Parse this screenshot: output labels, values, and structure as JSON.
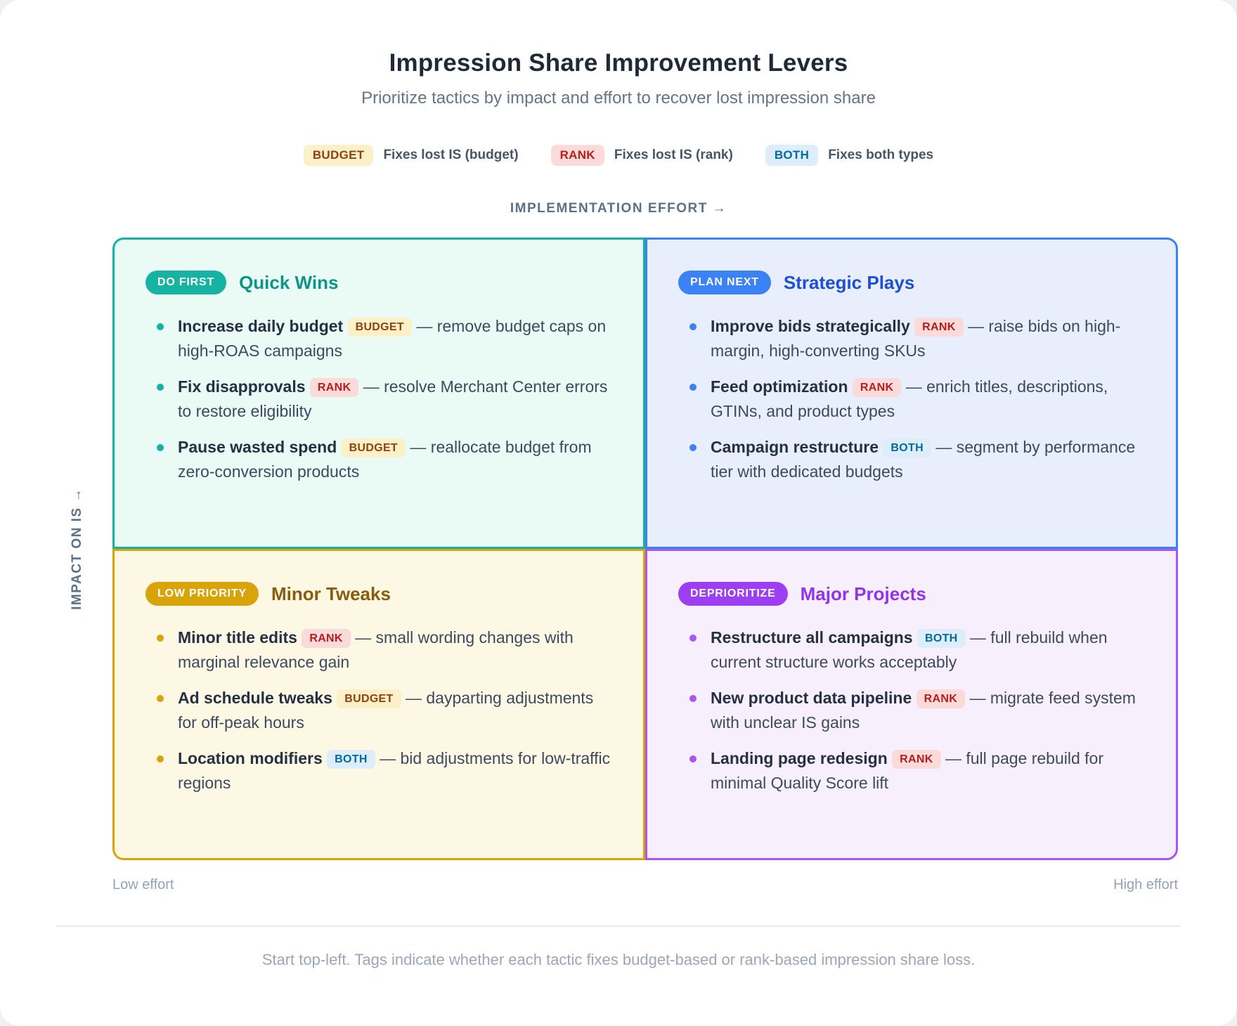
{
  "page": {
    "title": "Impression Share Improvement Levers",
    "subtitle": "Prioritize tactics by impact and effort to recover lost impression share",
    "footnote": "Start top-left. Tags indicate whether each tactic fixes budget-based or rank-based impression share loss."
  },
  "legend": [
    {
      "tag": "BUDGET",
      "label": "Fixes lost IS (budget)"
    },
    {
      "tag": "RANK",
      "label": "Fixes lost IS (rank)"
    },
    {
      "tag": "BOTH",
      "label": "Fixes both types"
    }
  ],
  "axes": {
    "x_label": "IMPLEMENTATION EFFORT →",
    "y_label": "IMPACT ON IS →",
    "x_min_label": "Low effort",
    "x_max_label": "High effort"
  },
  "quadrants": [
    {
      "id": "quick-wins",
      "badge": "DO FIRST",
      "title": "Quick Wins",
      "accent": "#14b3a1",
      "items": [
        {
          "lead": "Increase daily budget",
          "tag": "BUDGET",
          "rest": "— remove budget caps on high-ROAS campaigns"
        },
        {
          "lead": "Fix disapprovals",
          "tag": "RANK",
          "rest": "— resolve Merchant Center errors to restore eligibility"
        },
        {
          "lead": "Pause wasted spend",
          "tag": "BUDGET",
          "rest": "— reallocate budget from zero-conversion products"
        }
      ]
    },
    {
      "id": "strategic-plays",
      "badge": "PLAN NEXT",
      "title": "Strategic Plays",
      "accent": "#3b82f6",
      "items": [
        {
          "lead": "Improve bids strategically",
          "tag": "RANK",
          "rest": "— raise bids on high-margin, high-converting SKUs"
        },
        {
          "lead": "Feed optimization",
          "tag": "RANK",
          "rest": "— enrich titles, descriptions, GTINs, and product types"
        },
        {
          "lead": "Campaign restructure",
          "tag": "BOTH",
          "rest": "— segment by performance tier with dedicated budgets"
        }
      ]
    },
    {
      "id": "minor-tweaks",
      "badge": "LOW PRIORITY",
      "title": "Minor Tweaks",
      "accent": "#d9a40a",
      "items": [
        {
          "lead": "Minor title edits",
          "tag": "RANK",
          "rest": "— small wording changes with marginal relevance gain"
        },
        {
          "lead": "Ad schedule tweaks",
          "tag": "BUDGET",
          "rest": "— dayparting adjustments for off-peak hours"
        },
        {
          "lead": "Location modifiers",
          "tag": "BOTH",
          "rest": "— bid adjustments for low-traffic regions"
        }
      ]
    },
    {
      "id": "major-projects",
      "badge": "DEPRIORITIZE",
      "title": "Major Projects",
      "accent": "#a855f7",
      "items": [
        {
          "lead": "Restructure all campaigns",
          "tag": "BOTH",
          "rest": "— full rebuild when current structure works acceptably"
        },
        {
          "lead": "New product data pipeline",
          "tag": "RANK",
          "rest": "— migrate feed system with unclear IS gains"
        },
        {
          "lead": "Landing page redesign",
          "tag": "RANK",
          "rest": "— full page rebuild for minimal Quality Score lift"
        }
      ]
    }
  ],
  "colors": {
    "tag_budget_bg": "#fcf0c8",
    "tag_budget_text": "#92400e",
    "tag_rank_bg": "#fbdada",
    "tag_rank_text": "#b91c1c",
    "tag_both_bg": "#ddedf9",
    "tag_both_text": "#0369a1",
    "quick_wins_bg": "#eafaf5",
    "strategic_plays_bg": "#e8eefb",
    "minor_tweaks_bg": "#fdf8e3",
    "major_projects_bg": "#f8effd"
  }
}
